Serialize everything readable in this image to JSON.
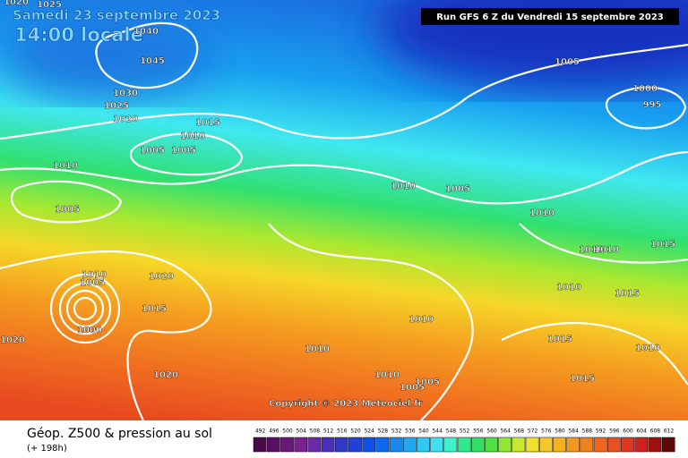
{
  "header": {
    "date": "Samedi 23 septembre 2023",
    "time": "14:00 locale",
    "run": "Run GFS 6 Z du Vendredi 15 septembre 2023"
  },
  "isobar_labels": [
    "1025",
    "1020",
    "1040",
    "1045",
    "1030",
    "1025",
    "1020",
    "1015",
    "1010",
    "1005",
    "1005",
    "1010",
    "1005",
    "1010",
    "1005",
    "1005",
    "1000",
    "995",
    "1010",
    "1010",
    "1010",
    "1015",
    "1020",
    "1010",
    "1005",
    "1015",
    "1000",
    "1020",
    "1010",
    "1015",
    "1010",
    "1010",
    "1015",
    "1010",
    "1020",
    "1010",
    "1005",
    "1005",
    "1015"
  ],
  "copyright": "Copyright © 2023 Meteociel.fr",
  "footer": {
    "title": "Géop. Z500 & pression au sol",
    "lead": "(+ 198h)"
  },
  "legend": {
    "values": [
      492,
      496,
      500,
      504,
      508,
      512,
      516,
      520,
      524,
      528,
      532,
      536,
      540,
      544,
      548,
      552,
      556,
      560,
      564,
      568,
      572,
      576,
      580,
      584,
      588,
      592,
      596,
      600,
      604,
      608,
      612
    ],
    "colors": [
      "#4a0a4a",
      "#5a1060",
      "#6a1878",
      "#7a2090",
      "#6a2aa8",
      "#4a30b8",
      "#3038c8",
      "#2040d8",
      "#1050e8",
      "#1068f0",
      "#1888f0",
      "#20a8f0",
      "#30c8f0",
      "#40e0f0",
      "#40f0c8",
      "#30e890",
      "#30e060",
      "#50e040",
      "#90e830",
      "#c8e830",
      "#f0e030",
      "#f5c828",
      "#f5b020",
      "#f59820",
      "#f08020",
      "#f06820",
      "#e85020",
      "#e03820",
      "#d02020",
      "#a01010",
      "#600808"
    ]
  }
}
